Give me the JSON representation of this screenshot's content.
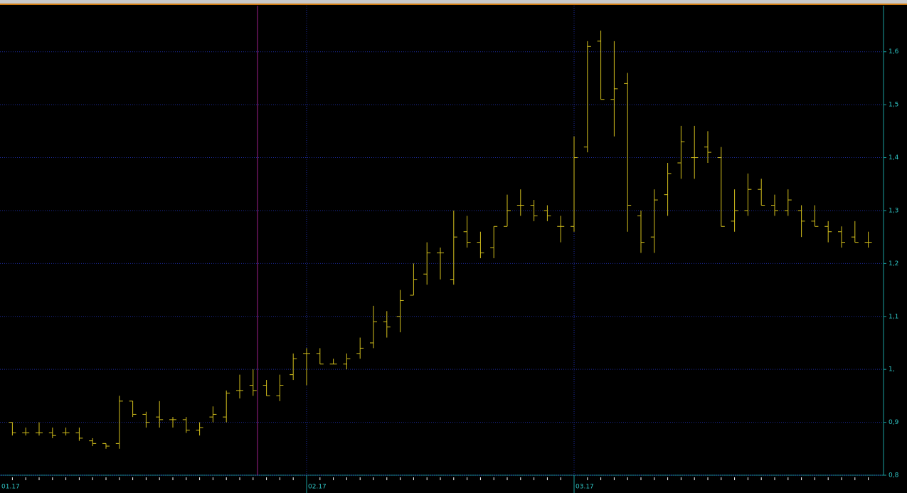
{
  "chart_data": {
    "type": "ohlc",
    "categories": [
      "01.17",
      null,
      null,
      null,
      null,
      null,
      null,
      null,
      null,
      null,
      null,
      null,
      null,
      null,
      null,
      null,
      null,
      null,
      null,
      null,
      null,
      null,
      "02.17",
      null,
      null,
      null,
      null,
      null,
      null,
      null,
      null,
      null,
      null,
      null,
      null,
      null,
      null,
      null,
      null,
      null,
      null,
      null,
      "03.17",
      null,
      null,
      null,
      null,
      null,
      null,
      null,
      null,
      null,
      null,
      null,
      null,
      null,
      null,
      null,
      null,
      null,
      null,
      null,
      null,
      null,
      null
    ],
    "series": [
      {
        "color": "#d4c01c",
        "open": [
          0.9,
          0.88,
          0.88,
          0.88,
          0.88,
          0.88,
          0.865,
          0.86,
          0.86,
          0.94,
          0.915,
          0.91,
          0.905,
          0.905,
          0.885,
          0.91,
          0.91,
          0.96,
          0.97,
          0.97,
          0.95,
          0.99,
          1.03,
          1.03,
          1.01,
          1.01,
          1.03,
          1.05,
          1.09,
          1.1,
          1.14,
          1.18,
          1.22,
          1.17,
          1.26,
          1.24,
          1.23,
          1.27,
          1.31,
          1.31,
          1.3,
          1.27,
          1.27,
          1.42,
          1.62,
          1.51,
          1.54,
          1.29,
          1.25,
          1.33,
          1.39,
          1.4,
          1.42,
          1.4,
          1.28,
          1.3,
          1.34,
          1.31,
          1.3,
          1.3,
          1.28,
          1.27,
          1.26,
          1.25,
          1.24
        ],
        "high": [
          0.9,
          0.89,
          0.9,
          0.89,
          0.89,
          0.89,
          0.87,
          0.86,
          0.95,
          0.94,
          0.92,
          0.94,
          0.91,
          0.91,
          0.9,
          0.93,
          0.96,
          0.99,
          1.0,
          0.98,
          0.99,
          1.03,
          1.04,
          1.04,
          1.02,
          1.03,
          1.06,
          1.12,
          1.11,
          1.15,
          1.2,
          1.24,
          1.23,
          1.3,
          1.29,
          1.26,
          1.27,
          1.33,
          1.34,
          1.32,
          1.31,
          1.29,
          1.44,
          1.62,
          1.64,
          1.62,
          1.56,
          1.3,
          1.34,
          1.39,
          1.46,
          1.46,
          1.45,
          1.42,
          1.34,
          1.37,
          1.36,
          1.33,
          1.34,
          1.31,
          1.31,
          1.28,
          1.27,
          1.28,
          1.26
        ],
        "low": [
          0.875,
          0.875,
          0.875,
          0.87,
          0.875,
          0.865,
          0.855,
          0.85,
          0.85,
          0.91,
          0.89,
          0.89,
          0.89,
          0.88,
          0.875,
          0.9,
          0.9,
          0.945,
          0.95,
          0.95,
          0.94,
          0.98,
          0.97,
          1.01,
          1.01,
          1.0,
          1.02,
          1.04,
          1.06,
          1.07,
          1.14,
          1.16,
          1.17,
          1.16,
          1.23,
          1.21,
          1.21,
          1.27,
          1.29,
          1.28,
          1.28,
          1.24,
          1.26,
          1.41,
          1.51,
          1.44,
          1.26,
          1.22,
          1.22,
          1.29,
          1.36,
          1.36,
          1.39,
          1.27,
          1.26,
          1.29,
          1.31,
          1.29,
          1.29,
          1.25,
          1.27,
          1.24,
          1.23,
          1.24,
          1.23
        ],
        "close": [
          0.88,
          0.88,
          0.88,
          0.875,
          0.88,
          0.87,
          0.86,
          0.855,
          0.94,
          0.915,
          0.9,
          0.905,
          0.905,
          0.885,
          0.89,
          0.915,
          0.955,
          0.96,
          0.96,
          0.95,
          0.97,
          1.02,
          1.03,
          1.01,
          1.01,
          1.02,
          1.04,
          1.09,
          1.08,
          1.13,
          1.17,
          1.22,
          1.22,
          1.25,
          1.24,
          1.22,
          1.27,
          1.3,
          1.31,
          1.29,
          1.29,
          1.27,
          1.4,
          1.61,
          1.51,
          1.53,
          1.31,
          1.24,
          1.32,
          1.37,
          1.43,
          1.4,
          1.41,
          1.27,
          1.3,
          1.34,
          1.31,
          1.3,
          1.32,
          1.28,
          1.27,
          1.26,
          1.24,
          1.24,
          1.24
        ]
      }
    ],
    "ylim": [
      0.8,
      1.687
    ],
    "yticks": [
      {
        "value": 0.8,
        "label": "0,8"
      },
      {
        "value": 0.9,
        "label": "0,9"
      },
      {
        "value": 1.0,
        "label": "1,"
      },
      {
        "value": 1.1,
        "label": "1,1"
      },
      {
        "value": 1.2,
        "label": "1,2"
      },
      {
        "value": 1.3,
        "label": "1,3"
      },
      {
        "value": 1.4,
        "label": "1,4"
      },
      {
        "value": 1.5,
        "label": "1,5"
      },
      {
        "value": 1.6,
        "label": "1,6"
      }
    ],
    "grid": true
  }
}
